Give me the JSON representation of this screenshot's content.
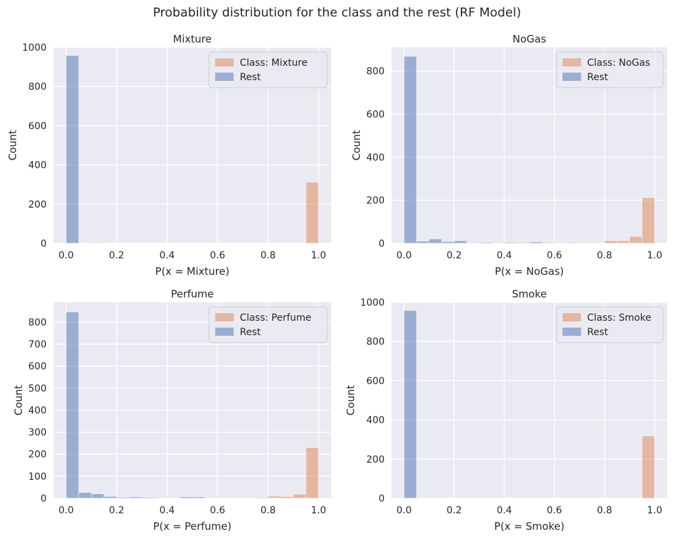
{
  "figure_title": "Probability distribution for the class and the rest (RF Model)",
  "colors": {
    "class": "#DD8452",
    "rest": "#4C72B0",
    "bg": "#EAEAF2",
    "grid": "#FFFFFF"
  },
  "chart_data": [
    {
      "type": "bar",
      "title": "Mixture",
      "xlabel": "P(x = Mixture)",
      "ylabel": "Count",
      "xlim": [
        -0.05,
        1.05
      ],
      "ylim": [
        0,
        1000
      ],
      "xticks": [
        "0.0",
        "0.2",
        "0.4",
        "0.6",
        "0.8",
        "1.0"
      ],
      "yticks": [
        "0",
        "200",
        "400",
        "600",
        "800",
        "1000"
      ],
      "bin_edges": [
        0,
        0.05,
        0.1,
        0.15,
        0.2,
        0.25,
        0.3,
        0.35,
        0.4,
        0.45,
        0.5,
        0.55,
        0.6,
        0.65,
        0.7,
        0.75,
        0.8,
        0.85,
        0.9,
        0.95,
        1.0
      ],
      "legend": {
        "class_label": "Class: Mixture",
        "rest_label": "Rest",
        "loc": "upper right"
      },
      "series": [
        {
          "name": "Class: Mixture",
          "values": [
            0,
            0,
            0,
            0,
            0,
            0,
            0,
            0,
            0,
            0,
            0,
            0,
            0,
            0,
            0,
            0,
            0,
            0,
            0,
            312
          ]
        },
        {
          "name": "Rest",
          "values": [
            958,
            0,
            2,
            0,
            0,
            0,
            0,
            0,
            0,
            0,
            0,
            0,
            0,
            0,
            0,
            0,
            0,
            0,
            0,
            0
          ]
        }
      ]
    },
    {
      "type": "bar",
      "title": "NoGas",
      "xlabel": "P(x = NoGas)",
      "ylabel": "Count",
      "xlim": [
        -0.05,
        1.05
      ],
      "ylim": [
        0,
        910
      ],
      "xticks": [
        "0.0",
        "0.2",
        "0.4",
        "0.6",
        "0.8",
        "1.0"
      ],
      "yticks": [
        "0",
        "200",
        "400",
        "600",
        "800"
      ],
      "bin_edges": [
        0,
        0.05,
        0.1,
        0.15,
        0.2,
        0.25,
        0.3,
        0.35,
        0.4,
        0.45,
        0.5,
        0.55,
        0.6,
        0.65,
        0.7,
        0.75,
        0.8,
        0.85,
        0.9,
        0.95,
        1.0
      ],
      "legend": {
        "class_label": "Class: NoGas",
        "rest_label": "Rest",
        "loc": "upper right"
      },
      "series": [
        {
          "name": "Class: NoGas",
          "values": [
            0,
            0,
            0,
            0,
            0,
            0,
            0,
            0,
            2,
            2,
            0,
            4,
            2,
            2,
            2,
            2,
            12,
            12,
            32,
            212
          ]
        },
        {
          "name": "Rest",
          "values": [
            868,
            10,
            20,
            8,
            12,
            2,
            4,
            2,
            4,
            3,
            6,
            0,
            0,
            3,
            0,
            0,
            0,
            0,
            0,
            0
          ]
        }
      ]
    },
    {
      "type": "bar",
      "title": "Perfume",
      "xlabel": "P(x = Perfume)",
      "ylabel": "Count",
      "xlim": [
        -0.05,
        1.05
      ],
      "ylim": [
        0,
        890
      ],
      "xticks": [
        "0.0",
        "0.2",
        "0.4",
        "0.6",
        "0.8",
        "1.0"
      ],
      "yticks": [
        "0",
        "100",
        "200",
        "300",
        "400",
        "500",
        "600",
        "700",
        "800"
      ],
      "bin_edges": [
        0,
        0.05,
        0.1,
        0.15,
        0.2,
        0.25,
        0.3,
        0.35,
        0.4,
        0.45,
        0.5,
        0.55,
        0.6,
        0.65,
        0.7,
        0.75,
        0.8,
        0.85,
        0.9,
        0.95,
        1.0
      ],
      "legend": {
        "class_label": "Class: Perfume",
        "rest_label": "Rest",
        "loc": "upper right"
      },
      "series": [
        {
          "name": "Class: Perfume",
          "values": [
            0,
            0,
            0,
            0,
            0,
            0,
            0,
            0,
            0,
            0,
            0,
            0,
            0,
            0,
            2,
            4,
            10,
            8,
            18,
            230
          ]
        },
        {
          "name": "Rest",
          "values": [
            846,
            26,
            20,
            8,
            4,
            6,
            4,
            2,
            2,
            6,
            6,
            2,
            2,
            2,
            0,
            2,
            2,
            0,
            0,
            0
          ]
        }
      ]
    },
    {
      "type": "bar",
      "title": "Smoke",
      "xlabel": "P(x = Smoke)",
      "ylabel": "Count",
      "xlim": [
        -0.05,
        1.05
      ],
      "ylim": [
        0,
        1000
      ],
      "xticks": [
        "0.0",
        "0.2",
        "0.4",
        "0.6",
        "0.8",
        "1.0"
      ],
      "yticks": [
        "0",
        "200",
        "400",
        "600",
        "800",
        "1000"
      ],
      "bin_edges": [
        0,
        0.05,
        0.1,
        0.15,
        0.2,
        0.25,
        0.3,
        0.35,
        0.4,
        0.45,
        0.5,
        0.55,
        0.6,
        0.65,
        0.7,
        0.75,
        0.8,
        0.85,
        0.9,
        0.95,
        1.0
      ],
      "legend": {
        "class_label": "Class: Smoke",
        "rest_label": "Rest",
        "loc": "upper right"
      },
      "series": [
        {
          "name": "Class: Smoke",
          "values": [
            0,
            0,
            0,
            0,
            0,
            0,
            0,
            0,
            0,
            0,
            0,
            0,
            0,
            0,
            0,
            0,
            0,
            0,
            0,
            318
          ]
        },
        {
          "name": "Rest",
          "values": [
            958,
            0,
            0,
            0,
            0,
            0,
            0,
            0,
            0,
            0,
            0,
            0,
            0,
            0,
            0,
            0,
            0,
            0,
            0,
            0
          ]
        }
      ]
    }
  ]
}
